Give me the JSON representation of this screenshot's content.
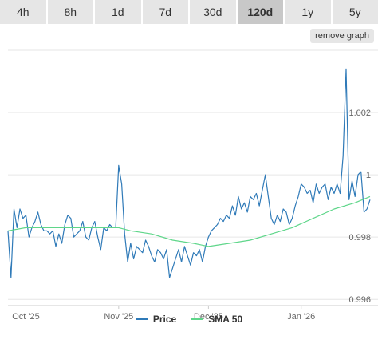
{
  "ranges": [
    "4h",
    "8h",
    "1d",
    "7d",
    "30d",
    "120d",
    "1y",
    "5y"
  ],
  "active_range": "120d",
  "remove_graph_label": "remove graph",
  "colors": {
    "price": "#2f7ab8",
    "sma": "#5fd68a",
    "grid": "#e6e6e6"
  },
  "legend": {
    "price": "Price",
    "sma": "SMA 50"
  },
  "chart_data": {
    "type": "line",
    "x_start": "2025-09-25",
    "x_end": "2026-01-24",
    "xticks": [
      {
        "date": "2025-10-01",
        "label": "Oct '25"
      },
      {
        "date": "2025-11-01",
        "label": "Nov '25"
      },
      {
        "date": "2025-12-01",
        "label": "Dec '25"
      },
      {
        "date": "2026-01-01",
        "label": "Jan '26"
      }
    ],
    "yticks": [
      {
        "value": 0.996,
        "label": "0.996"
      },
      {
        "value": 0.998,
        "label": "0.998"
      },
      {
        "value": 1.0,
        "label": "1"
      },
      {
        "value": 1.002,
        "label": "1.002"
      }
    ],
    "ylim": [
      0.9958,
      1.004
    ],
    "series": [
      {
        "name": "Price",
        "points": [
          [
            "2025-09-25",
            0.9982
          ],
          [
            "2025-09-26",
            0.9967
          ],
          [
            "2025-09-27",
            0.9989
          ],
          [
            "2025-09-28",
            0.9983
          ],
          [
            "2025-09-29",
            0.9989
          ],
          [
            "2025-09-30",
            0.9986
          ],
          [
            "2025-10-01",
            0.9987
          ],
          [
            "2025-10-02",
            0.998
          ],
          [
            "2025-10-03",
            0.9983
          ],
          [
            "2025-10-04",
            0.9985
          ],
          [
            "2025-10-05",
            0.9988
          ],
          [
            "2025-10-06",
            0.9984
          ],
          [
            "2025-10-07",
            0.9982
          ],
          [
            "2025-10-08",
            0.9982
          ],
          [
            "2025-10-09",
            0.9981
          ],
          [
            "2025-10-10",
            0.9982
          ],
          [
            "2025-10-11",
            0.9977
          ],
          [
            "2025-10-12",
            0.9981
          ],
          [
            "2025-10-13",
            0.9978
          ],
          [
            "2025-10-14",
            0.9984
          ],
          [
            "2025-10-15",
            0.9987
          ],
          [
            "2025-10-16",
            0.9986
          ],
          [
            "2025-10-17",
            0.998
          ],
          [
            "2025-10-18",
            0.9981
          ],
          [
            "2025-10-19",
            0.9982
          ],
          [
            "2025-10-20",
            0.9985
          ],
          [
            "2025-10-21",
            0.998
          ],
          [
            "2025-10-22",
            0.9979
          ],
          [
            "2025-10-23",
            0.9983
          ],
          [
            "2025-10-24",
            0.9985
          ],
          [
            "2025-10-25",
            0.998
          ],
          [
            "2025-10-26",
            0.9976
          ],
          [
            "2025-10-27",
            0.9983
          ],
          [
            "2025-10-28",
            0.9982
          ],
          [
            "2025-10-29",
            0.9984
          ],
          [
            "2025-10-30",
            0.9983
          ],
          [
            "2025-10-31",
            0.9983
          ],
          [
            "2025-11-01",
            1.0003
          ],
          [
            "2025-11-02",
            0.9997
          ],
          [
            "2025-11-03",
            0.9981
          ],
          [
            "2025-11-04",
            0.9972
          ],
          [
            "2025-11-05",
            0.9978
          ],
          [
            "2025-11-06",
            0.9973
          ],
          [
            "2025-11-07",
            0.9977
          ],
          [
            "2025-11-08",
            0.9976
          ],
          [
            "2025-11-09",
            0.9975
          ],
          [
            "2025-11-10",
            0.9979
          ],
          [
            "2025-11-11",
            0.9977
          ],
          [
            "2025-11-12",
            0.9974
          ],
          [
            "2025-11-13",
            0.9972
          ],
          [
            "2025-11-14",
            0.9976
          ],
          [
            "2025-11-15",
            0.9975
          ],
          [
            "2025-11-16",
            0.9973
          ],
          [
            "2025-11-17",
            0.9976
          ],
          [
            "2025-11-18",
            0.9967
          ],
          [
            "2025-11-19",
            0.997
          ],
          [
            "2025-11-20",
            0.9973
          ],
          [
            "2025-11-21",
            0.9976
          ],
          [
            "2025-11-22",
            0.9972
          ],
          [
            "2025-11-23",
            0.9977
          ],
          [
            "2025-11-24",
            0.9974
          ],
          [
            "2025-11-25",
            0.9971
          ],
          [
            "2025-11-26",
            0.9975
          ],
          [
            "2025-11-27",
            0.9974
          ],
          [
            "2025-11-28",
            0.9976
          ],
          [
            "2025-11-29",
            0.9972
          ],
          [
            "2025-11-30",
            0.9977
          ],
          [
            "2025-12-01",
            0.998
          ],
          [
            "2025-12-02",
            0.9982
          ],
          [
            "2025-12-03",
            0.9983
          ],
          [
            "2025-12-04",
            0.9984
          ],
          [
            "2025-12-05",
            0.9986
          ],
          [
            "2025-12-06",
            0.9985
          ],
          [
            "2025-12-07",
            0.9987
          ],
          [
            "2025-12-08",
            0.9986
          ],
          [
            "2025-12-09",
            0.999
          ],
          [
            "2025-12-10",
            0.9987
          ],
          [
            "2025-12-11",
            0.9993
          ],
          [
            "2025-12-12",
            0.9989
          ],
          [
            "2025-12-13",
            0.9991
          ],
          [
            "2025-12-14",
            0.9988
          ],
          [
            "2025-12-15",
            0.9993
          ],
          [
            "2025-12-16",
            0.9992
          ],
          [
            "2025-12-17",
            0.9994
          ],
          [
            "2025-12-18",
            0.999
          ],
          [
            "2025-12-19",
            0.9995
          ],
          [
            "2025-12-20",
            1.0
          ],
          [
            "2025-12-21",
            0.9993
          ],
          [
            "2025-12-22",
            0.9986
          ],
          [
            "2025-12-23",
            0.9984
          ],
          [
            "2025-12-24",
            0.9987
          ],
          [
            "2025-12-25",
            0.9985
          ],
          [
            "2025-12-26",
            0.9989
          ],
          [
            "2025-12-27",
            0.9988
          ],
          [
            "2025-12-28",
            0.9984
          ],
          [
            "2025-12-29",
            0.9986
          ],
          [
            "2025-12-30",
            0.999
          ],
          [
            "2025-12-31",
            0.9993
          ],
          [
            "2026-01-01",
            0.9997
          ],
          [
            "2026-01-02",
            0.9996
          ],
          [
            "2026-01-03",
            0.9994
          ],
          [
            "2026-01-04",
            0.9995
          ],
          [
            "2026-01-05",
            0.9991
          ],
          [
            "2026-01-06",
            0.9997
          ],
          [
            "2026-01-07",
            0.9994
          ],
          [
            "2026-01-08",
            0.9996
          ],
          [
            "2026-01-09",
            0.9997
          ],
          [
            "2026-01-10",
            0.9992
          ],
          [
            "2026-01-11",
            0.9996
          ],
          [
            "2026-01-12",
            0.9994
          ],
          [
            "2026-01-13",
            0.9997
          ],
          [
            "2026-01-14",
            0.9994
          ],
          [
            "2026-01-15",
            1.0006
          ],
          [
            "2026-01-16",
            1.0034
          ],
          [
            "2026-01-17",
            0.9992
          ],
          [
            "2026-01-18",
            0.9998
          ],
          [
            "2026-01-19",
            0.9993
          ],
          [
            "2026-01-20",
            1.0
          ],
          [
            "2026-01-21",
            1.0001
          ],
          [
            "2026-01-22",
            0.9988
          ],
          [
            "2026-01-23",
            0.9989
          ],
          [
            "2026-01-24",
            0.9992
          ]
        ]
      },
      {
        "name": "SMA 50",
        "points": [
          [
            "2025-09-25",
            0.9982
          ],
          [
            "2025-10-01",
            0.9983
          ],
          [
            "2025-10-08",
            0.9983
          ],
          [
            "2025-10-15",
            0.9983
          ],
          [
            "2025-10-22",
            0.9983
          ],
          [
            "2025-10-29",
            0.9983
          ],
          [
            "2025-11-01",
            0.9983
          ],
          [
            "2025-11-05",
            0.9982
          ],
          [
            "2025-11-12",
            0.9981
          ],
          [
            "2025-11-19",
            0.9979
          ],
          [
            "2025-11-26",
            0.9978
          ],
          [
            "2025-12-01",
            0.9977
          ],
          [
            "2025-12-08",
            0.9978
          ],
          [
            "2025-12-15",
            0.9979
          ],
          [
            "2025-12-22",
            0.9981
          ],
          [
            "2025-12-29",
            0.9983
          ],
          [
            "2026-01-05",
            0.9986
          ],
          [
            "2026-01-12",
            0.9989
          ],
          [
            "2026-01-19",
            0.9991
          ],
          [
            "2026-01-24",
            0.9993
          ]
        ]
      }
    ]
  }
}
